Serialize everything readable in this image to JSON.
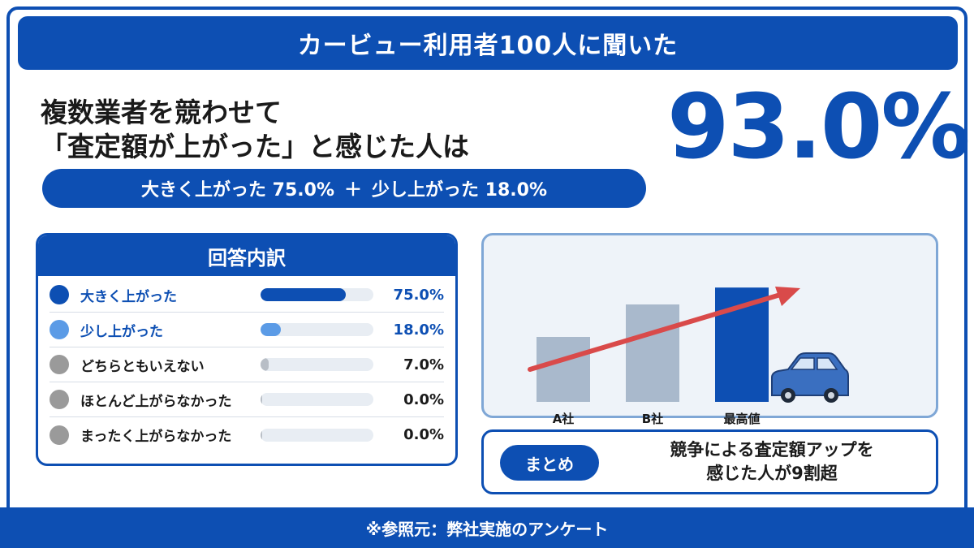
{
  "header": {
    "title": "カービュー利用者100人に聞いた"
  },
  "headline": {
    "line1": "複数業者を競わせて",
    "line2": "「査定額が上がった」と感じた人は"
  },
  "big_stat": {
    "value": "93.0%"
  },
  "breakdown": {
    "part1": "大きく上がった 75.0%",
    "plus": "＋",
    "part2": "少し上がった 18.0%"
  },
  "answers": {
    "title": "回答内訳",
    "items": [
      {
        "label": "大きく上がった",
        "value": "75.0%",
        "percent": 75.0,
        "color": "#0d4fb3",
        "highlight": true
      },
      {
        "label": "少し上がった",
        "value": "18.0%",
        "percent": 18.0,
        "color": "#5b9be6",
        "highlight": true
      },
      {
        "label": "どちらともいえない",
        "value": "7.0%",
        "percent": 7.0,
        "color": "#9a9a9a",
        "highlight": false
      },
      {
        "label": "ほとんど上がらなかった",
        "value": "0.0%",
        "percent": 0.0,
        "color": "#9a9a9a",
        "highlight": false
      },
      {
        "label": "まったく上がらなかった",
        "value": "0.0%",
        "percent": 0.0,
        "color": "#9a9a9a",
        "highlight": false
      }
    ]
  },
  "chart_data": {
    "type": "bar",
    "categories": [
      "A社",
      "B社",
      "最高値"
    ],
    "values": [
      50,
      75,
      88
    ],
    "colors": [
      "#a9b9cc",
      "#a9b9cc",
      "#0d4fb3"
    ],
    "ylim": [
      0,
      100
    ],
    "annotations": [
      "trend-arrow",
      "car-icon"
    ]
  },
  "summary": {
    "pill": "まとめ",
    "line1": "競争による査定額アップを",
    "line2": "感じた人が9割超"
  },
  "footer": {
    "text": "※参照元：弊社実施のアンケート"
  },
  "colors": {
    "primary": "#0d4fb3",
    "light_bar": "#a9b9cc",
    "arrow": "#d94a4a",
    "car": "#3a6fc0"
  }
}
